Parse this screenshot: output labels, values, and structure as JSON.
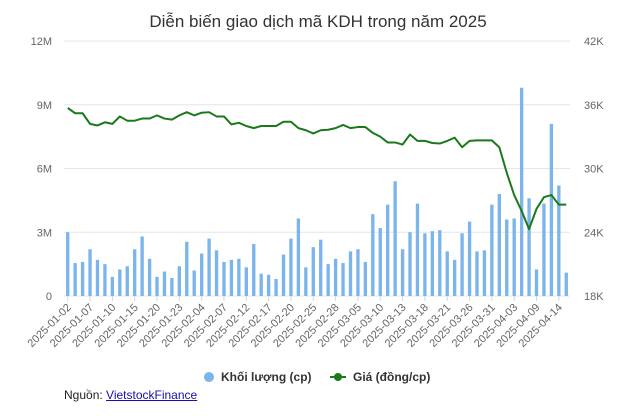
{
  "chart_data": {
    "type": "bar+line",
    "title": "Diễn biến giao dịch mã KDH trong năm 2025",
    "categories": [
      "2025-01-02",
      "2025-01-03",
      "2025-01-06",
      "2025-01-07",
      "2025-01-08",
      "2025-01-09",
      "2025-01-10",
      "2025-01-13",
      "2025-01-14",
      "2025-01-15",
      "2025-01-16",
      "2025-01-17",
      "2025-01-20",
      "2025-01-21",
      "2025-01-22",
      "2025-01-23",
      "2025-01-24",
      "2025-02-03",
      "2025-02-04",
      "2025-02-05",
      "2025-02-06",
      "2025-02-07",
      "2025-02-10",
      "2025-02-11",
      "2025-02-12",
      "2025-02-13",
      "2025-02-14",
      "2025-02-17",
      "2025-02-18",
      "2025-02-19",
      "2025-02-20",
      "2025-02-21",
      "2025-02-24",
      "2025-02-25",
      "2025-02-26",
      "2025-02-27",
      "2025-02-28",
      "2025-03-03",
      "2025-03-04",
      "2025-03-05",
      "2025-03-06",
      "2025-03-07",
      "2025-03-10",
      "2025-03-11",
      "2025-03-12",
      "2025-03-13",
      "2025-03-14",
      "2025-03-17",
      "2025-03-18",
      "2025-03-19",
      "2025-03-20",
      "2025-03-21",
      "2025-03-24",
      "2025-03-25",
      "2025-03-26",
      "2025-03-27",
      "2025-03-28",
      "2025-03-31",
      "2025-04-01",
      "2025-04-02",
      "2025-04-03",
      "2025-04-04",
      "2025-04-08",
      "2025-04-09",
      "2025-04-10",
      "2025-04-11",
      "2025-04-14",
      "2025-04-15"
    ],
    "x_tick_labels": [
      "2025-01-02",
      "2025-01-07",
      "2025-01-10",
      "2025-01-15",
      "2025-01-20",
      "2025-01-23",
      "2025-02-04",
      "2025-02-07",
      "2025-02-12",
      "2025-02-17",
      "2025-02-20",
      "2025-02-25",
      "2025-02-28",
      "2025-03-05",
      "2025-03-10",
      "2025-03-13",
      "2025-03-18",
      "2025-03-21",
      "2025-03-26",
      "2025-03-31",
      "2025-04-03",
      "2025-04-09",
      "2025-04-14"
    ],
    "series": [
      {
        "name": "Khối lượng (cp)",
        "type": "bar",
        "axis": "left",
        "color": "#7cb5ec",
        "values": [
          3000000,
          1550000,
          1600000,
          2200000,
          1700000,
          1500000,
          900000,
          1250000,
          1400000,
          2200000,
          2800000,
          1750000,
          900000,
          1150000,
          850000,
          1400000,
          2550000,
          1200000,
          2000000,
          2700000,
          2150000,
          1600000,
          1700000,
          1750000,
          1350000,
          2450000,
          1050000,
          1000000,
          800000,
          1950000,
          2700000,
          3650000,
          1350000,
          2300000,
          2650000,
          1500000,
          1750000,
          1550000,
          2100000,
          2200000,
          1600000,
          3850000,
          3200000,
          4300000,
          5400000,
          2200000,
          3000000,
          4350000,
          2950000,
          3050000,
          3100000,
          2100000,
          1700000,
          2950000,
          3500000,
          2100000,
          2150000,
          4300000,
          4800000,
          3600000,
          3650000,
          9800000,
          4600000,
          1250000,
          4350000,
          8100000,
          5200000,
          1100000
        ]
      },
      {
        "name": "Giá (đồng/cp)",
        "type": "line",
        "axis": "right",
        "color": "#1a7a1a",
        "values": [
          35700,
          35200,
          35200,
          34200,
          34050,
          34350,
          34200,
          34900,
          34500,
          34500,
          34700,
          34700,
          35000,
          34700,
          34600,
          35000,
          35300,
          35000,
          35250,
          35300,
          34900,
          34900,
          34150,
          34300,
          34000,
          33800,
          34000,
          34000,
          34000,
          34400,
          34400,
          33800,
          33600,
          33300,
          33600,
          33650,
          33800,
          34100,
          33800,
          33900,
          33900,
          33350,
          33000,
          32450,
          32450,
          32250,
          33200,
          32600,
          32600,
          32400,
          32350,
          32600,
          32900,
          32000,
          32600,
          32650,
          32650,
          32650,
          32000,
          29600,
          27500,
          26000,
          24300,
          26200,
          27300,
          27500,
          26600,
          26600
        ]
      }
    ],
    "y_left": {
      "ticks": [
        "0",
        "3M",
        "6M",
        "9M",
        "12M"
      ],
      "ylim": [
        0,
        12000000
      ]
    },
    "y_right": {
      "ticks": [
        "18K",
        "24K",
        "30K",
        "36K",
        "42K"
      ],
      "ylim": [
        18000,
        42000
      ]
    },
    "grid": true,
    "legend": "bottom"
  },
  "footer": {
    "source_label": "Nguồn:",
    "source_link": "VietstockFinance"
  },
  "colors": {
    "bar": "#7cb5ec",
    "line": "#1a7a1a",
    "grid": "#e6e6e6",
    "text": "#666666"
  }
}
